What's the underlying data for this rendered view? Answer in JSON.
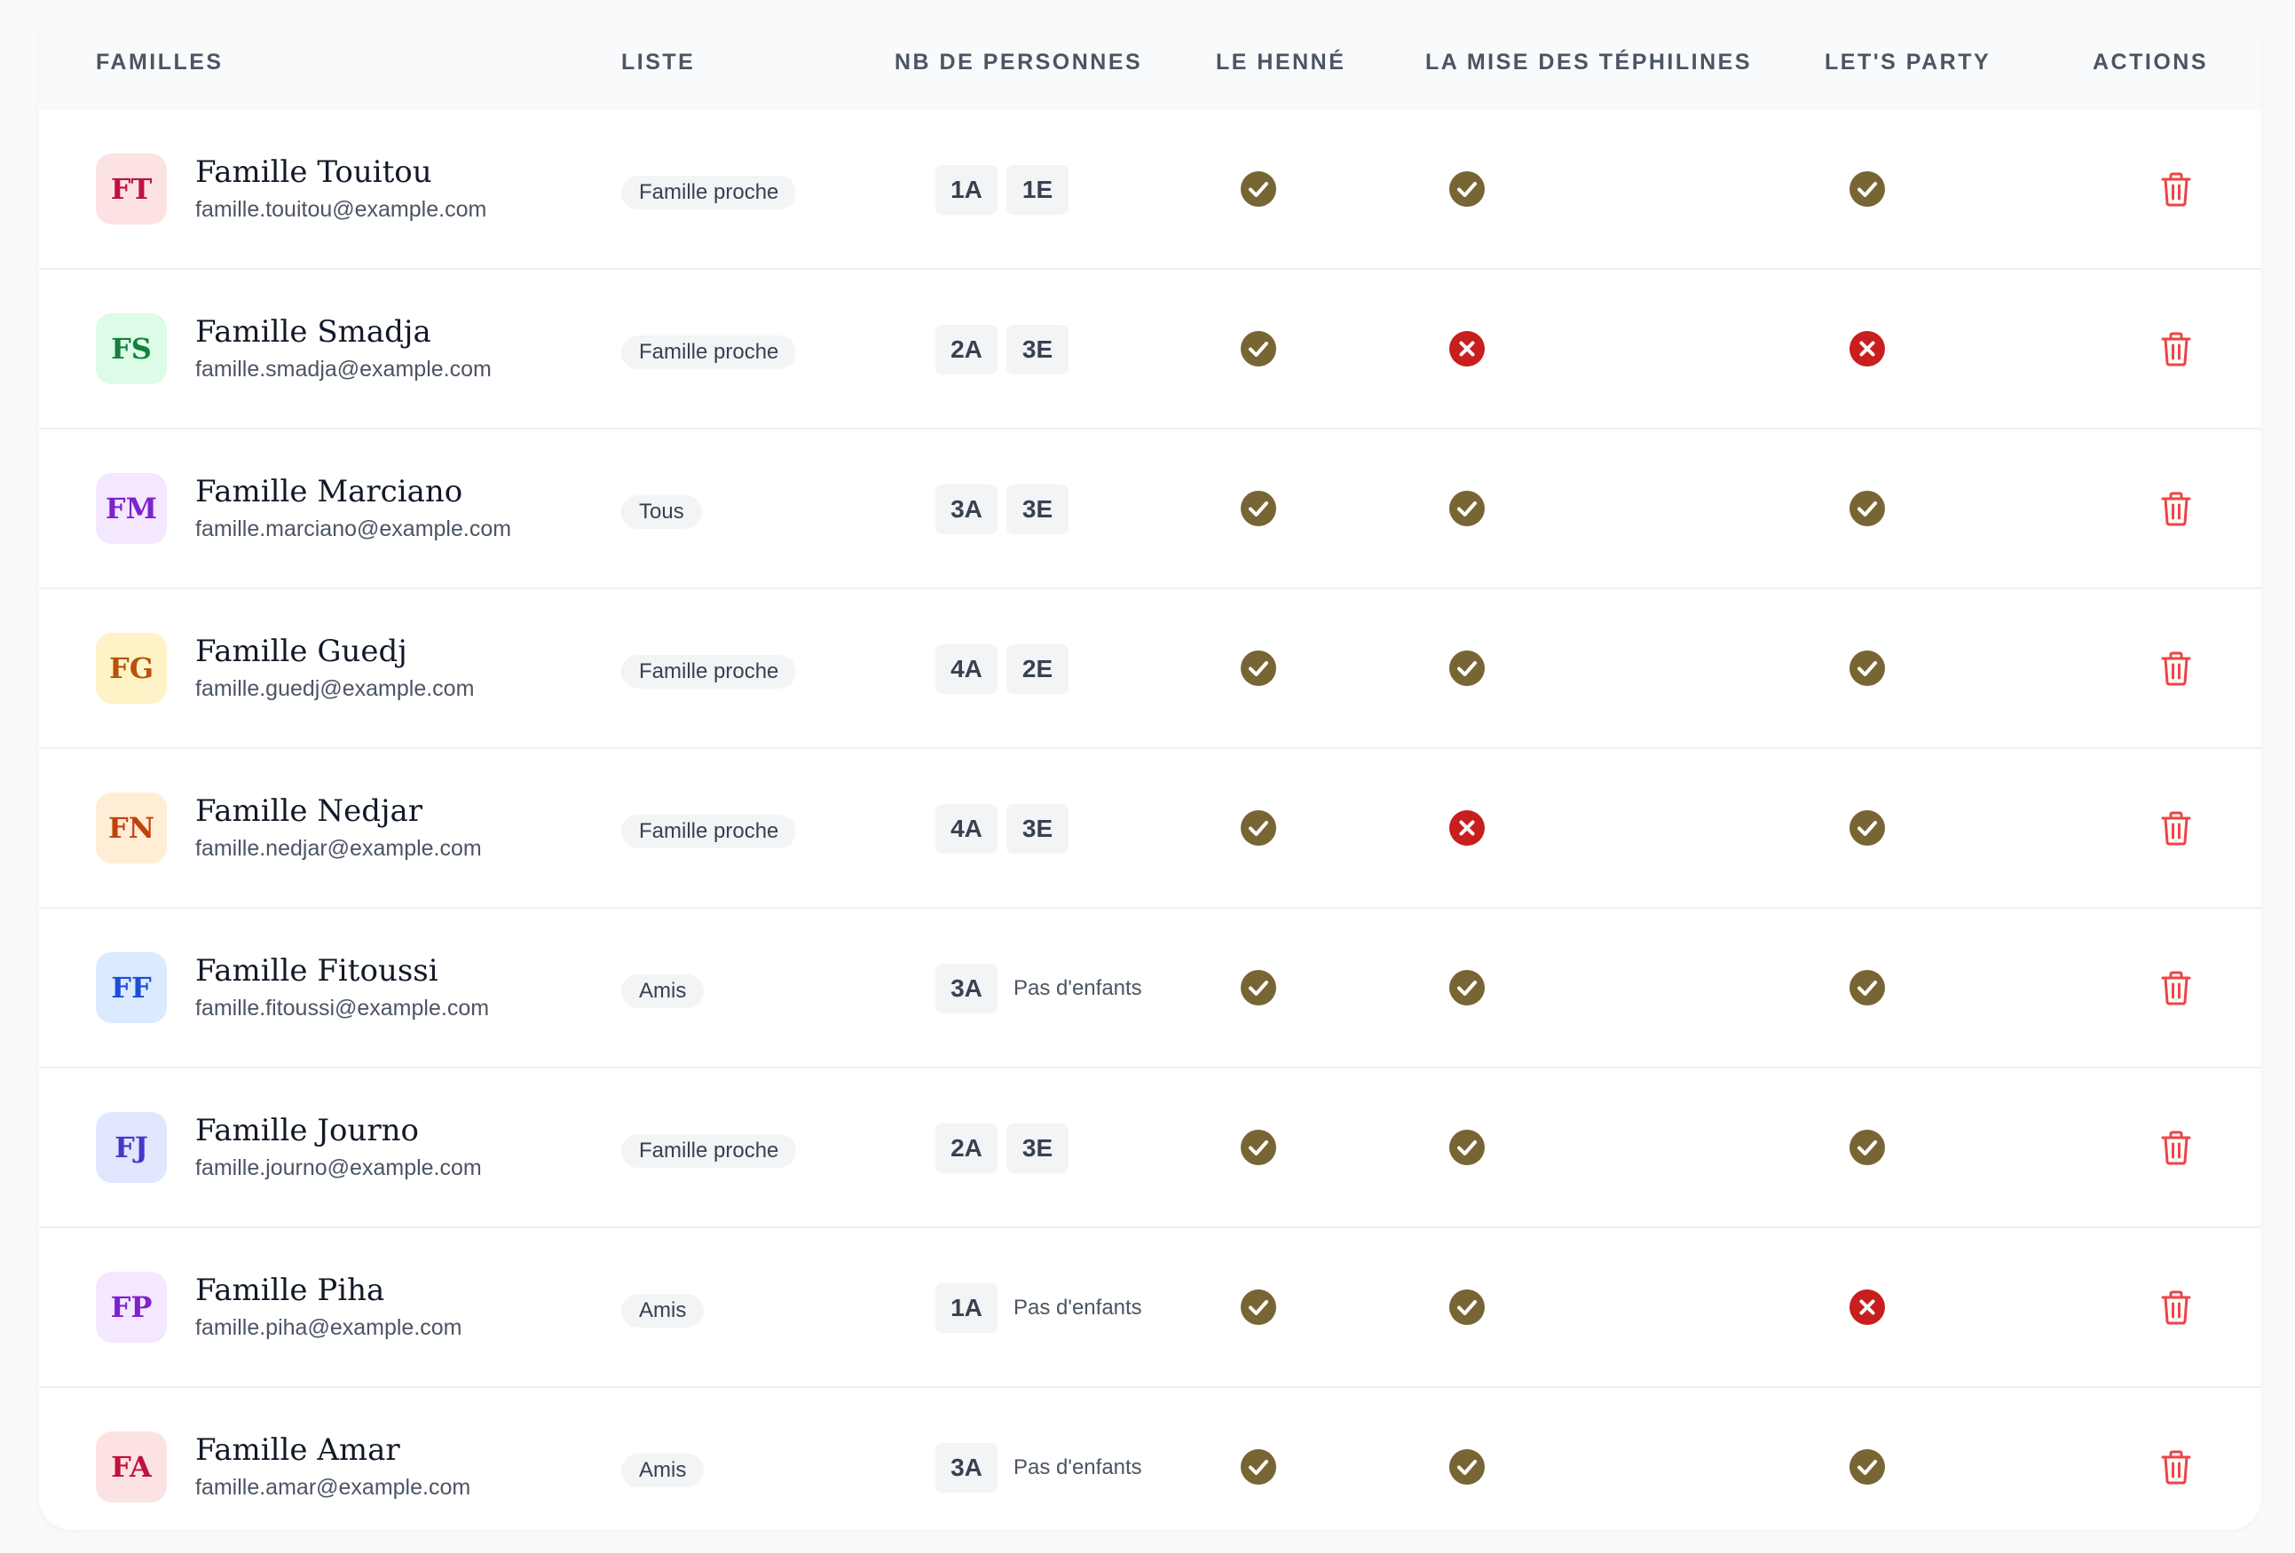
{
  "headers": {
    "families": "FAMILLES",
    "list": "LISTE",
    "people": "NB DE PERSONNES",
    "henne": "LE HENNÉ",
    "tephilines": "LA MISE DES TÉPHILINES",
    "party": "LET'S PARTY",
    "actions": "ACTIONS"
  },
  "colors": {
    "check": "#776534",
    "cross": "#c81e1e",
    "trash": "#ef4444"
  },
  "rows": [
    {
      "initials": "FT",
      "name": "Famille Touitou",
      "email": "famille.touitou@example.com",
      "list": "Famille proche",
      "adults": "1A",
      "children": "1E",
      "henne": true,
      "tephilines": true,
      "party": true,
      "avatar_bg": "#fde2e4",
      "avatar_fg": "#be123c"
    },
    {
      "initials": "FS",
      "name": "Famille Smadja",
      "email": "famille.smadja@example.com",
      "list": "Famille proche",
      "adults": "2A",
      "children": "3E",
      "henne": true,
      "tephilines": false,
      "party": false,
      "avatar_bg": "#dcfce7",
      "avatar_fg": "#15803d"
    },
    {
      "initials": "FM",
      "name": "Famille Marciano",
      "email": "famille.marciano@example.com",
      "list": "Tous",
      "adults": "3A",
      "children": "3E",
      "henne": true,
      "tephilines": true,
      "party": true,
      "avatar_bg": "#f3e8ff",
      "avatar_fg": "#7e22ce"
    },
    {
      "initials": "FG",
      "name": "Famille Guedj",
      "email": "famille.guedj@example.com",
      "list": "Famille proche",
      "adults": "4A",
      "children": "2E",
      "henne": true,
      "tephilines": true,
      "party": true,
      "avatar_bg": "#fef3c7",
      "avatar_fg": "#b45309"
    },
    {
      "initials": "FN",
      "name": "Famille Nedjar",
      "email": "famille.nedjar@example.com",
      "list": "Famille proche",
      "adults": "4A",
      "children": "3E",
      "henne": true,
      "tephilines": false,
      "party": true,
      "avatar_bg": "#ffedd5",
      "avatar_fg": "#c2410c"
    },
    {
      "initials": "FF",
      "name": "Famille Fitoussi",
      "email": "famille.fitoussi@example.com",
      "list": "Amis",
      "adults": "3A",
      "children": "Pas d'enfants",
      "henne": true,
      "tephilines": true,
      "party": true,
      "avatar_bg": "#dbeafe",
      "avatar_fg": "#1d4ed8"
    },
    {
      "initials": "FJ",
      "name": "Famille Journo",
      "email": "famille.journo@example.com",
      "list": "Famille proche",
      "adults": "2A",
      "children": "3E",
      "henne": true,
      "tephilines": true,
      "party": true,
      "avatar_bg": "#e0e7ff",
      "avatar_fg": "#4338ca"
    },
    {
      "initials": "FP",
      "name": "Famille Piha",
      "email": "famille.piha@example.com",
      "list": "Amis",
      "adults": "1A",
      "children": "Pas d'enfants",
      "henne": true,
      "tephilines": true,
      "party": false,
      "avatar_bg": "#f3e8ff",
      "avatar_fg": "#7e22ce"
    },
    {
      "initials": "FA",
      "name": "Famille Amar",
      "email": "famille.amar@example.com",
      "list": "Amis",
      "adults": "3A",
      "children": "Pas d'enfants",
      "henne": true,
      "tephilines": true,
      "party": true,
      "avatar_bg": "#fde2e4",
      "avatar_fg": "#be123c"
    }
  ]
}
